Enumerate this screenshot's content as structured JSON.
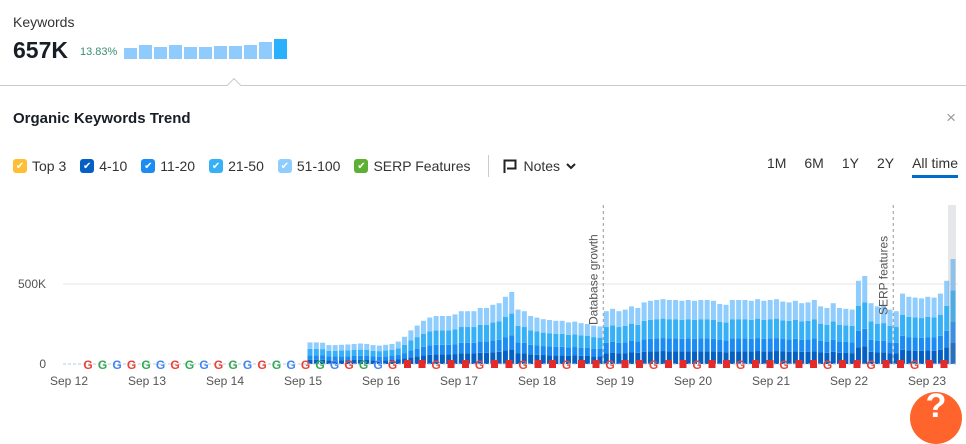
{
  "keywords": {
    "label": "Keywords",
    "value": "657K",
    "delta": "13.83%",
    "spark": [
      0.55,
      0.7,
      0.6,
      0.7,
      0.6,
      0.6,
      0.65,
      0.65,
      0.7,
      0.85,
      1.0
    ]
  },
  "panel": {
    "title": "Organic Keywords Trend",
    "close": "×"
  },
  "legend": [
    {
      "label": "Top 3",
      "color": "#ffbe33"
    },
    {
      "label": "4-10",
      "color": "#0560c4"
    },
    {
      "label": "11-20",
      "color": "#1b8cf3"
    },
    {
      "label": "21-50",
      "color": "#36b0f7"
    },
    {
      "label": "51-100",
      "color": "#8ecdfd"
    },
    {
      "label": "SERP Features",
      "color": "#5cb034"
    }
  ],
  "notes_label": "Notes",
  "ranges": [
    "1M",
    "6M",
    "1Y",
    "2Y",
    "All time"
  ],
  "active_range": "All time",
  "help_label": "?",
  "chart_data": {
    "type": "bar",
    "stacked": true,
    "title": "Organic Keywords Trend",
    "yticks": [
      {
        "v": 0,
        "label": "0"
      },
      {
        "v": 500,
        "label": "500K"
      }
    ],
    "ylim": [
      0,
      700
    ],
    "xticks": [
      "Sep 12",
      "Sep 13",
      "Sep 14",
      "Sep 15",
      "Sep 16",
      "Sep 17",
      "Sep 18",
      "Sep 19",
      "Sep 20",
      "Sep 21",
      "Sep 22",
      "Sep 23"
    ],
    "series_names": [
      "4-10",
      "11-20",
      "21-50",
      "51-100"
    ],
    "shares": [
      0.2,
      0.2,
      0.3,
      0.3
    ],
    "totals_k": [
      135,
      135,
      133,
      118,
      118,
      120,
      122,
      125,
      128,
      125,
      118,
      115,
      120,
      125,
      140,
      170,
      210,
      240,
      270,
      290,
      300,
      300,
      300,
      310,
      330,
      330,
      330,
      350,
      350,
      370,
      380,
      420,
      450,
      340,
      330,
      300,
      290,
      280,
      275,
      270,
      270,
      260,
      265,
      255,
      250,
      240,
      235,
      330,
      345,
      330,
      340,
      360,
      350,
      385,
      395,
      400,
      405,
      400,
      400,
      395,
      400,
      395,
      400,
      400,
      395,
      375,
      370,
      400,
      400,
      400,
      395,
      405,
      395,
      400,
      405,
      390,
      385,
      395,
      380,
      385,
      400,
      360,
      350,
      380,
      350,
      345,
      340,
      520,
      550,
      380,
      360,
      365,
      340,
      330,
      440,
      420,
      415,
      410,
      420,
      415,
      440,
      520,
      656
    ],
    "annotations": [
      {
        "label": "Database growth",
        "index": 47
      },
      {
        "label": "SERP features",
        "index": 93
      }
    ]
  }
}
